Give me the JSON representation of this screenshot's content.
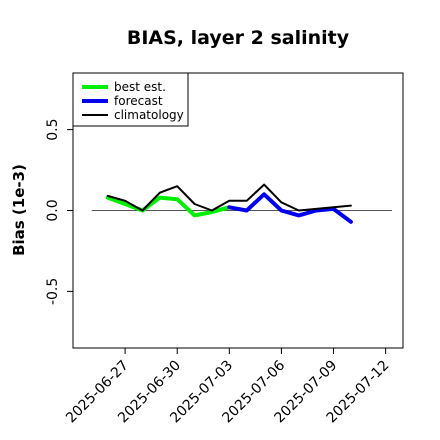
{
  "chart_data": {
    "type": "line",
    "title": "BIAS, layer 2 salinity",
    "xlabel": "",
    "ylabel": "Bias (1e-3)",
    "xlim": [
      "2025-06-24",
      "2025-07-13"
    ],
    "ylim": [
      -0.85,
      0.85
    ],
    "yticks": [
      -0.5,
      0.0,
      0.5
    ],
    "ytick_labels": [
      "-0.5",
      "0.0",
      "0.5"
    ],
    "xticks": [
      "2025-06-27",
      "2025-06-30",
      "2025-07-03",
      "2025-07-06",
      "2025-07-09",
      "2025-07-12"
    ],
    "xtick_colors": [
      "#000000",
      "#000000",
      "#228b22",
      "#000000",
      "#000000",
      "#000000"
    ],
    "reference_line": 0.0,
    "legend_position": "top-left",
    "series": [
      {
        "name": "best est.",
        "color": "#00ee00",
        "x": [
          "2025-06-26",
          "2025-06-27",
          "2025-06-28",
          "2025-06-29",
          "2025-06-30",
          "2025-07-01",
          "2025-07-02",
          "2025-07-03"
        ],
        "values": [
          0.08,
          0.04,
          0.0,
          0.08,
          0.07,
          -0.03,
          -0.01,
          0.02
        ]
      },
      {
        "name": "forecast",
        "color": "#0000ee",
        "x": [
          "2025-07-03",
          "2025-07-04",
          "2025-07-05",
          "2025-07-06",
          "2025-07-07",
          "2025-07-08",
          "2025-07-09",
          "2025-07-10"
        ],
        "values": [
          0.02,
          0.0,
          0.1,
          0.0,
          -0.03,
          0.0,
          0.01,
          -0.07
        ]
      },
      {
        "name": "climatology",
        "color": "#000000",
        "x": [
          "2025-06-26",
          "2025-06-27",
          "2025-06-28",
          "2025-06-29",
          "2025-06-30",
          "2025-07-01",
          "2025-07-02",
          "2025-07-03",
          "2025-07-04",
          "2025-07-05",
          "2025-07-06",
          "2025-07-07",
          "2025-07-08",
          "2025-07-09",
          "2025-07-10"
        ],
        "values": [
          0.09,
          0.06,
          0.0,
          0.11,
          0.15,
          0.04,
          0.0,
          0.06,
          0.06,
          0.16,
          0.05,
          0.0,
          0.01,
          0.02,
          0.03
        ]
      }
    ]
  }
}
